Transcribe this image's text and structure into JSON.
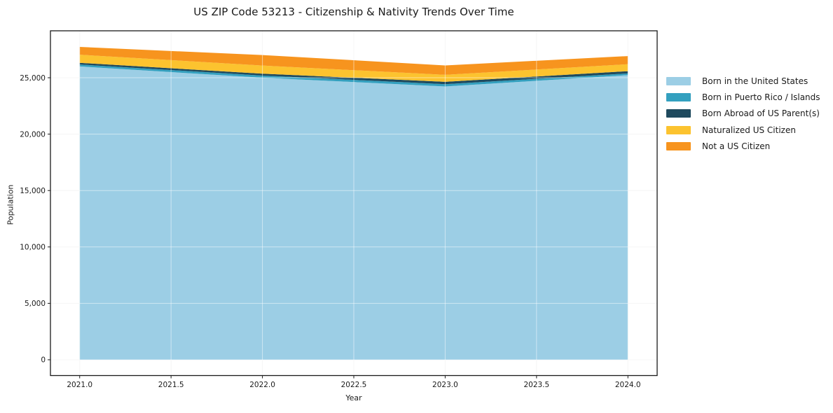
{
  "chart_data": {
    "type": "area",
    "stacked": true,
    "title": "US ZIP Code 53213 - Citizenship & Nativity Trends Over Time",
    "xlabel": "Year",
    "ylabel": "Population",
    "x": [
      2021,
      2022,
      2023,
      2024
    ],
    "series": [
      {
        "name": "Born in the United States",
        "color": "#9CCEE5",
        "values": [
          26000,
          25000,
          24230,
          25230
        ]
      },
      {
        "name": "Born in Puerto Rico / Islands",
        "color": "#33A0BF",
        "values": [
          170,
          190,
          200,
          150
        ]
      },
      {
        "name": "Born Abroad of US Parent(s)",
        "color": "#1F4A5E",
        "values": [
          150,
          170,
          210,
          200
        ]
      },
      {
        "name": "Naturalized US Citizen",
        "color": "#FCC32F",
        "values": [
          720,
          720,
          620,
          620
        ]
      },
      {
        "name": "Not a US Citizen",
        "color": "#F7941E",
        "values": [
          690,
          930,
          830,
          720
        ]
      }
    ],
    "xlim": [
      2020.84,
      2024.16
    ],
    "ylim": [
      -1400,
      29160
    ],
    "x_ticks": [
      2021.0,
      2021.5,
      2022.0,
      2022.5,
      2023.0,
      2023.5,
      2024.0
    ],
    "x_tick_labels": [
      "2021.0",
      "2021.5",
      "2022.0",
      "2022.5",
      "2023.0",
      "2023.5",
      "2024.0"
    ],
    "y_ticks": [
      0,
      5000,
      10000,
      15000,
      20000,
      25000
    ],
    "y_tick_labels": [
      "0",
      "5,000",
      "10,000",
      "15,000",
      "20,000",
      "25,000"
    ],
    "grid": true,
    "legend_position": "right",
    "colors": {
      "background": "#ffffff",
      "spine": "#1a1a1a",
      "grid_under": "#efefef",
      "grid_over": "rgba(255,255,255,0.5)"
    }
  }
}
